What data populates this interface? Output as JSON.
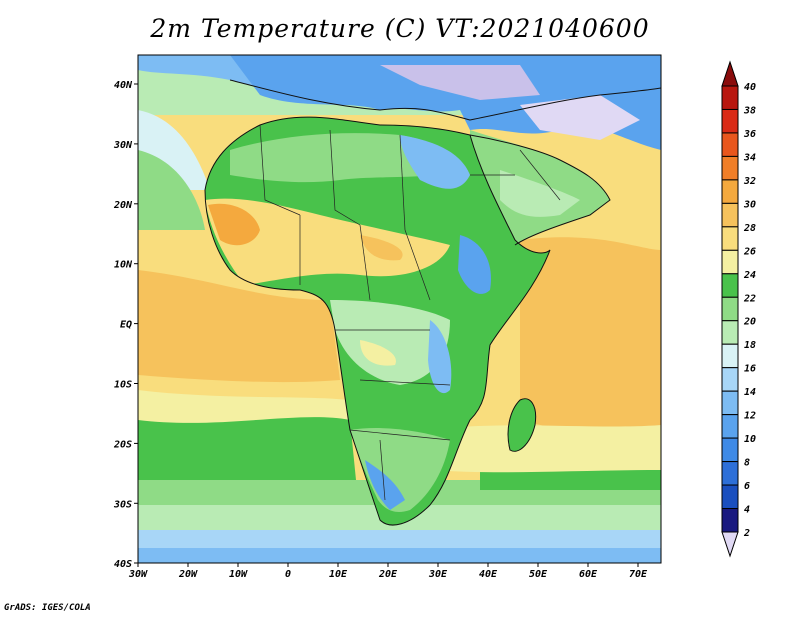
{
  "title": "2m Temperature (C) VT:2021040600",
  "credit": "GrADS: IGES/COLA",
  "map": {
    "lon_labels": [
      "30W",
      "20W",
      "10W",
      "0",
      "10E",
      "20E",
      "30E",
      "40E",
      "50E",
      "60E",
      "70E"
    ],
    "lat_labels": [
      "40N",
      "30N",
      "20N",
      "10N",
      "EQ",
      "10S",
      "20S",
      "30S",
      "40S"
    ]
  },
  "colorbar": {
    "labels": [
      "2",
      "4",
      "6",
      "8",
      "10",
      "12",
      "14",
      "16",
      "18",
      "20",
      "22",
      "24",
      "26",
      "28",
      "30",
      "32",
      "34",
      "36",
      "38",
      "40"
    ],
    "colors": [
      "#e0d9f4",
      "#1a1a80",
      "#1a4fbf",
      "#2d6fd8",
      "#3f8ae6",
      "#5aa3ee",
      "#7dbcf3",
      "#a8d6f7",
      "#d9f2f5",
      "#b9ebb4",
      "#8fdb86",
      "#49c24b",
      "#f4f0a2",
      "#f9dd7d",
      "#f6c25c",
      "#f4a93e",
      "#f07e28",
      "#e8561d",
      "#d92a16",
      "#b8170f",
      "#8a0c0c"
    ]
  },
  "chart_data": {
    "type": "heatmap",
    "title": "2m Temperature (C) VT:2021040600",
    "variable": "2m Temperature",
    "units": "C",
    "valid_time": "2021040600",
    "lon_range": [
      "30W",
      "70E"
    ],
    "lat_range": [
      "40S",
      "40N"
    ],
    "colorbar_levels": [
      2,
      4,
      6,
      8,
      10,
      12,
      14,
      16,
      18,
      20,
      22,
      24,
      26,
      28,
      30,
      32,
      34,
      36,
      38,
      40
    ]
  }
}
